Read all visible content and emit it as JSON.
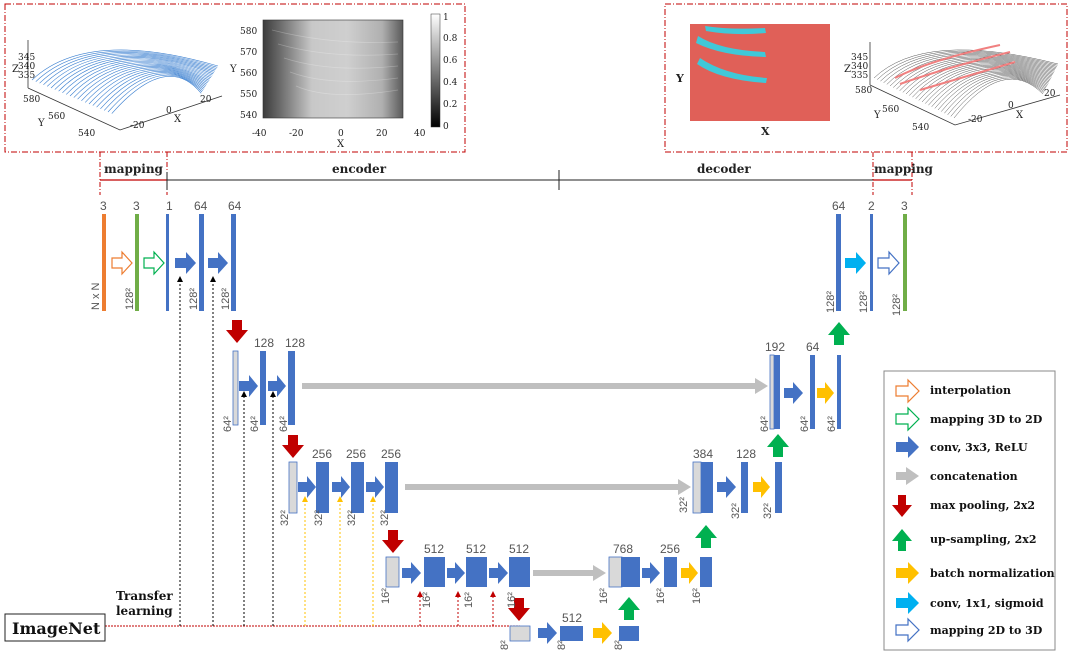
{
  "sections": {
    "mapping_left": "mapping",
    "encoder": "encoder",
    "decoder": "decoder",
    "mapping_right": "mapping"
  },
  "imagenet": {
    "label": "ImageNet",
    "transfer_line1": "Transfer",
    "transfer_line2": "learning"
  },
  "left_panel": {
    "scatter": {
      "z_label": "Z",
      "z_ticks": [
        "345",
        "340",
        "335"
      ],
      "y_label": "Y",
      "y_ticks": [
        "580",
        "560",
        "540"
      ],
      "x_label": "X",
      "x_ticks": [
        "20",
        "0",
        "-20"
      ]
    },
    "image": {
      "y_label": "Y",
      "y_ticks": [
        "580",
        "570",
        "560",
        "550",
        "540"
      ],
      "x_label": "X",
      "x_ticks": [
        "-40",
        "-20",
        "0",
        "20",
        "40"
      ],
      "colorbar_ticks": [
        "1",
        "0.8",
        "0.6",
        "0.4",
        "0.2",
        "0"
      ]
    }
  },
  "right_panel": {
    "image": {
      "y_label": "Y",
      "x_label": "X"
    },
    "surface": {
      "z_label": "Z",
      "z_ticks": [
        "345",
        "340",
        "335"
      ],
      "y_label": "Y",
      "y_ticks": [
        "580",
        "560",
        "540"
      ],
      "x_label": "X",
      "x_ticks": [
        "20",
        "0",
        "-20"
      ]
    }
  },
  "labels": {
    "n_x_n": "N x N",
    "s128": "128²",
    "s64": "64²",
    "s32": "32²",
    "s16": "16²",
    "s8": "8²",
    "c3": "3",
    "c1": "1",
    "c2": "2",
    "c64": "64",
    "c128": "128",
    "c192": "192",
    "c256": "256",
    "c384": "384",
    "c512": "512",
    "c768": "768"
  },
  "legend": [
    {
      "label": "interpolation",
      "icon": "interpolation-arrow-icon"
    },
    {
      "label": "mapping 3D to 2D",
      "icon": "mapping-3d-2d-arrow-icon"
    },
    {
      "label": "conv, 3x3, ReLU",
      "icon": "conv-arrow-icon"
    },
    {
      "label": "concatenation",
      "icon": "concatenation-arrow-icon"
    },
    {
      "label": "max pooling, 2x2",
      "icon": "max-pooling-arrow-icon"
    },
    {
      "label": "up-sampling, 2x2",
      "icon": "up-sampling-arrow-icon"
    },
    {
      "label": "batch normalization",
      "icon": "batch-norm-arrow-icon"
    },
    {
      "label": "conv, 1x1, sigmoid",
      "icon": "conv-sigmoid-arrow-icon"
    },
    {
      "label": "mapping 2D to 3D",
      "icon": "mapping-2d-3d-arrow-icon"
    }
  ],
  "colors": {
    "conv_blue": "#4472c4",
    "pool_red": "#c00000",
    "up_green": "#00b050",
    "bn_yellow": "#ffc000",
    "sigmoid_cyan": "#00b0f0",
    "concat_gray": "#bfbfbf",
    "interp_orange": "#ed7d31",
    "map_green": "#70ad47",
    "red_border": "#c00000",
    "segment_red": "#e06058",
    "crack_cyan": "#40c8d8"
  }
}
